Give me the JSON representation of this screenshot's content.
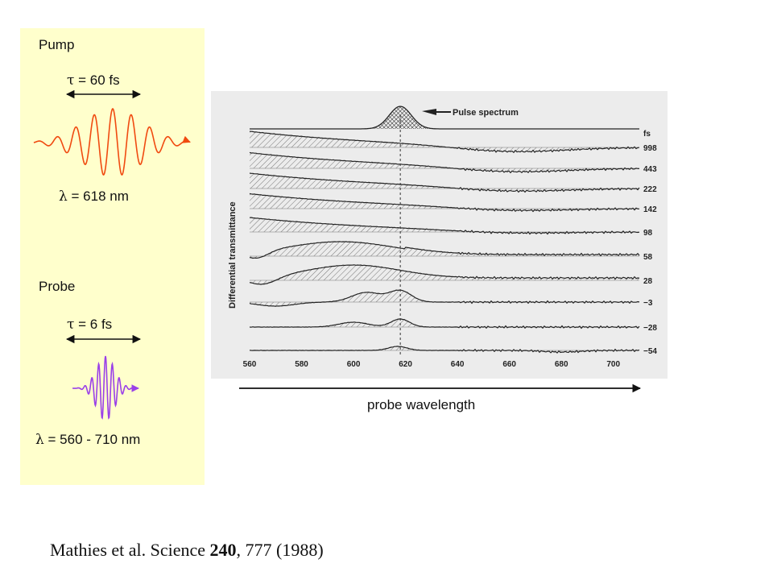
{
  "pump": {
    "title": "Pump",
    "tau_symbol": "τ",
    "tau_text": " = 60 fs",
    "lambda_symbol": "λ",
    "lambda_text": " = 618 nm",
    "wave_color": "#f04a10"
  },
  "probe": {
    "title": "Probe",
    "tau_symbol": "τ",
    "tau_text": " = 6 fs",
    "lambda_symbol": "λ",
    "lambda_text": " = 560 - 710 nm",
    "wave_color": "#9a40e8"
  },
  "panel_color": "#ffffcc",
  "figure": {
    "pulse_label": "Pulse spectrum",
    "ylabel": "Differential transmittance",
    "unit_label": "fs",
    "delays": [
      "998",
      "443",
      "222",
      "142",
      "98",
      "58",
      "28",
      "−3",
      "−28",
      "−54"
    ],
    "x_ticks": [
      "560",
      "580",
      "600",
      "620",
      "640",
      "660",
      "680",
      "700"
    ],
    "xlim": [
      560,
      710
    ],
    "dashed_at": 618
  },
  "axis_label": "probe wavelength",
  "citation": {
    "authors": "Mathies et al. Science ",
    "volume": "240",
    "rest": ", 777 (1988)"
  }
}
